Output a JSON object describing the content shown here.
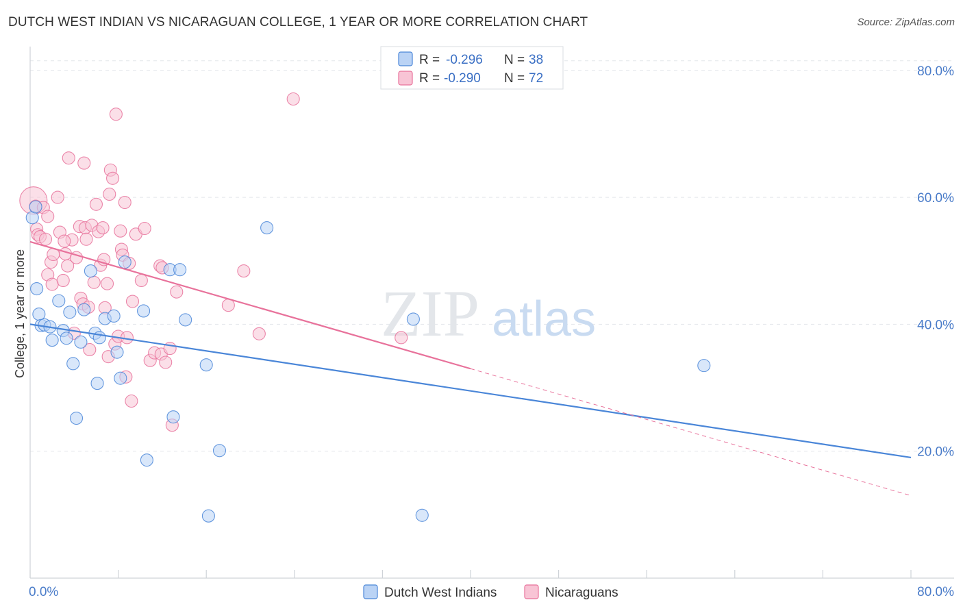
{
  "header": {
    "title": "DUTCH WEST INDIAN VS NICARAGUAN COLLEGE, 1 YEAR OR MORE CORRELATION CHART",
    "source": "Source: ZipAtlas.com"
  },
  "watermark": {
    "zip": "ZIP",
    "atlas": "atlas"
  },
  "colors": {
    "blue": "#4a86d8",
    "blue_fill": "#bad3f5",
    "pink": "#e8729b",
    "pink_fill": "#f8c4d5",
    "grid": "#e2e5ea",
    "axis_label": "#4a7cc9"
  },
  "legend": {
    "rows": [
      {
        "r_label": "R = ",
        "r_value": "-0.296",
        "n_label": "N = ",
        "n_value": "38"
      },
      {
        "r_label": "R = ",
        "r_value": "-0.290",
        "n_label": "N = ",
        "n_value": "72"
      }
    ]
  },
  "chart_data": {
    "type": "scatter",
    "xlabel": "",
    "ylabel": "College, 1 year or more",
    "xlim": [
      0,
      80
    ],
    "ylim": [
      0,
      83
    ],
    "x_tick_labels": [
      "0.0%",
      "80.0%"
    ],
    "y_ticks": [
      20,
      40,
      60,
      80
    ],
    "y_tick_labels": [
      "20.0%",
      "40.0%",
      "60.0%",
      "80.0%"
    ],
    "grid": true,
    "legend_position": "top-center",
    "series": [
      {
        "name": "Dutch West Indians",
        "color": "#4a86d8",
        "r": -0.296,
        "n": 38,
        "trend": {
          "x0": 0,
          "y0": 40.0,
          "x1": 80,
          "y1": 19.0,
          "dashed_from": null
        },
        "points": [
          [
            0.2,
            56.8
          ],
          [
            0.6,
            45.6
          ],
          [
            0.8,
            41.6
          ],
          [
            1.0,
            39.8
          ],
          [
            1.3,
            39.9
          ],
          [
            1.8,
            39.6
          ],
          [
            2.0,
            37.5
          ],
          [
            2.6,
            43.7
          ],
          [
            3.0,
            39.0
          ],
          [
            3.3,
            37.8
          ],
          [
            3.6,
            41.9
          ],
          [
            3.9,
            33.8
          ],
          [
            4.2,
            25.2
          ],
          [
            4.6,
            37.2
          ],
          [
            4.9,
            42.3
          ],
          [
            5.5,
            48.4
          ],
          [
            5.9,
            38.6
          ],
          [
            6.1,
            30.7
          ],
          [
            6.3,
            37.9
          ],
          [
            6.8,
            40.9
          ],
          [
            7.6,
            41.3
          ],
          [
            7.9,
            35.6
          ],
          [
            8.2,
            31.5
          ],
          [
            8.6,
            49.8
          ],
          [
            10.3,
            42.1
          ],
          [
            10.6,
            18.6
          ],
          [
            12.7,
            48.6
          ],
          [
            13.0,
            25.4
          ],
          [
            13.6,
            48.6
          ],
          [
            14.1,
            40.7
          ],
          [
            16.0,
            33.6
          ],
          [
            16.2,
            9.8
          ],
          [
            17.2,
            20.1
          ],
          [
            21.5,
            55.2
          ],
          [
            34.8,
            40.8
          ],
          [
            35.6,
            9.9
          ],
          [
            61.2,
            33.5
          ],
          [
            0.5,
            58.5
          ]
        ]
      },
      {
        "name": "Nicaraguans",
        "color": "#e8729b",
        "r": -0.29,
        "n": 72,
        "trend": {
          "x0": 0,
          "y0": 53.0,
          "x1": 80,
          "y1": 13.0,
          "dashed_from": 40
        },
        "points": [
          [
            0.3,
            59.5
          ],
          [
            0.5,
            58.6
          ],
          [
            0.6,
            55.0
          ],
          [
            0.7,
            54.1
          ],
          [
            0.9,
            53.8
          ],
          [
            1.2,
            58.4
          ],
          [
            1.4,
            53.4
          ],
          [
            1.6,
            47.8
          ],
          [
            1.6,
            57.0
          ],
          [
            1.9,
            49.8
          ],
          [
            2.0,
            46.3
          ],
          [
            2.1,
            51.0
          ],
          [
            2.5,
            60.0
          ],
          [
            2.7,
            54.5
          ],
          [
            3.0,
            46.9
          ],
          [
            3.2,
            51.1
          ],
          [
            3.4,
            49.2
          ],
          [
            3.5,
            66.2
          ],
          [
            3.8,
            53.3
          ],
          [
            4.0,
            38.6
          ],
          [
            4.2,
            50.5
          ],
          [
            4.5,
            55.4
          ],
          [
            4.6,
            44.1
          ],
          [
            4.8,
            43.2
          ],
          [
            4.9,
            65.4
          ],
          [
            5.0,
            55.2
          ],
          [
            5.1,
            53.4
          ],
          [
            5.3,
            42.7
          ],
          [
            5.4,
            36.0
          ],
          [
            5.6,
            55.6
          ],
          [
            5.8,
            46.6
          ],
          [
            6.0,
            58.9
          ],
          [
            6.2,
            54.6
          ],
          [
            6.4,
            49.3
          ],
          [
            6.7,
            50.2
          ],
          [
            6.8,
            42.6
          ],
          [
            7.0,
            46.4
          ],
          [
            7.1,
            34.9
          ],
          [
            7.2,
            60.5
          ],
          [
            7.3,
            64.3
          ],
          [
            7.5,
            63.0
          ],
          [
            7.7,
            36.9
          ],
          [
            7.8,
            73.1
          ],
          [
            8.0,
            38.1
          ],
          [
            8.2,
            54.7
          ],
          [
            8.3,
            51.8
          ],
          [
            8.4,
            50.9
          ],
          [
            8.6,
            59.2
          ],
          [
            8.7,
            31.7
          ],
          [
            8.8,
            37.9
          ],
          [
            9.2,
            27.9
          ],
          [
            9.3,
            43.6
          ],
          [
            9.6,
            54.2
          ],
          [
            10.1,
            46.9
          ],
          [
            10.4,
            55.1
          ],
          [
            10.9,
            34.3
          ],
          [
            11.3,
            35.5
          ],
          [
            11.8,
            49.2
          ],
          [
            11.9,
            35.3
          ],
          [
            12.3,
            34.0
          ],
          [
            12.7,
            36.2
          ],
          [
            12.9,
            24.1
          ],
          [
            13.3,
            45.1
          ],
          [
            18.0,
            43.0
          ],
          [
            19.4,
            48.4
          ],
          [
            20.8,
            38.5
          ],
          [
            23.9,
            75.5
          ],
          [
            33.7,
            37.9
          ],
          [
            6.6,
            55.2
          ],
          [
            3.1,
            53.1
          ],
          [
            9.0,
            49.6
          ],
          [
            12.0,
            48.9
          ]
        ]
      }
    ]
  },
  "bottom_legend": {
    "items": [
      {
        "label": "Dutch West Indians"
      },
      {
        "label": "Nicaraguans"
      }
    ]
  }
}
